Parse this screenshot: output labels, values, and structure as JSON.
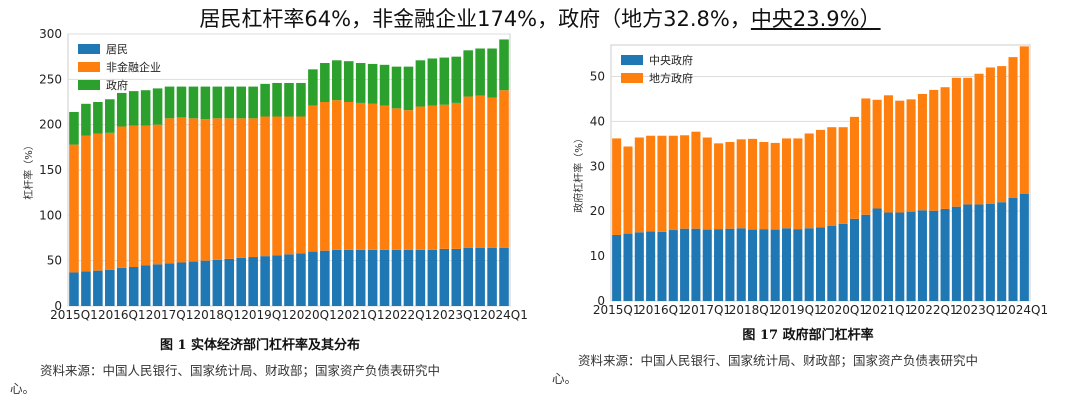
{
  "headline": {
    "part1": "居民杠杆率64%，非金融企业174%，政府（地方32.8%，",
    "part2": "中央23.9%）"
  },
  "colors": {
    "blue": "#1f77b4",
    "orange": "#ff7f0e",
    "green": "#2ca02c"
  },
  "chart_data": [
    {
      "type": "bar",
      "stacked": true,
      "title": "",
      "xlabel": "",
      "ylabel": "杠杆率（%）",
      "ylim": [
        0,
        300
      ],
      "yticks": [
        0,
        50,
        100,
        150,
        200,
        250,
        300
      ],
      "xticks": [
        "2015Q1",
        "2016Q1",
        "2017Q1",
        "2018Q1",
        "2019Q1",
        "2020Q1",
        "2021Q1",
        "2022Q1",
        "2023Q1",
        "2024Q1"
      ],
      "legend_position": "top-left",
      "grid": true,
      "categories": [
        "2015Q1",
        "2015Q2",
        "2015Q3",
        "2015Q4",
        "2016Q1",
        "2016Q2",
        "2016Q3",
        "2016Q4",
        "2017Q1",
        "2017Q2",
        "2017Q3",
        "2017Q4",
        "2018Q1",
        "2018Q2",
        "2018Q3",
        "2018Q4",
        "2019Q1",
        "2019Q2",
        "2019Q3",
        "2019Q4",
        "2020Q1",
        "2020Q2",
        "2020Q3",
        "2020Q4",
        "2021Q1",
        "2021Q2",
        "2021Q3",
        "2021Q4",
        "2022Q1",
        "2022Q2",
        "2022Q3",
        "2022Q4",
        "2023Q1",
        "2023Q2",
        "2023Q3",
        "2023Q4",
        "2024Q1"
      ],
      "series": [
        {
          "name": "居民",
          "color": "#1f77b4",
          "values": [
            37,
            38,
            39,
            40,
            42,
            43,
            45,
            46,
            47,
            48,
            49,
            50,
            51,
            52,
            53,
            54,
            55,
            56,
            57,
            58,
            60,
            61,
            62,
            62,
            62,
            62,
            62,
            62,
            62,
            62,
            62,
            63,
            63,
            64,
            64,
            64,
            64
          ]
        },
        {
          "name": "非金融企业",
          "color": "#ff7f0e",
          "values": [
            141,
            150,
            151,
            151,
            156,
            156,
            154,
            154,
            160,
            160,
            158,
            156,
            156,
            155,
            154,
            153,
            154,
            153,
            152,
            151,
            161,
            164,
            165,
            163,
            162,
            161,
            159,
            156,
            154,
            158,
            159,
            159,
            161,
            167,
            168,
            166,
            174
          ]
        },
        {
          "name": "政府",
          "color": "#2ca02c",
          "values": [
            36,
            35,
            35,
            37,
            37,
            38,
            39,
            40,
            35,
            34,
            35,
            36,
            35,
            35,
            35,
            35,
            36,
            37,
            37,
            37,
            40,
            43,
            44,
            45,
            44,
            44,
            45,
            46,
            48,
            51,
            52,
            52,
            51,
            51,
            52,
            54,
            56
          ]
        }
      ]
    },
    {
      "type": "bar",
      "stacked": true,
      "title": "",
      "xlabel": "",
      "ylabel": "政府杠杆率（%）",
      "ylim": [
        0,
        57
      ],
      "yticks": [
        0,
        10,
        20,
        30,
        40,
        50
      ],
      "xticks": [
        "2015Q1",
        "2016Q1",
        "2017Q1",
        "2018Q1",
        "2019Q1",
        "2020Q1",
        "2021Q1",
        "2022Q1",
        "2023Q1",
        "2024Q1"
      ],
      "legend_position": "top-left",
      "grid": true,
      "categories": [
        "2015Q1",
        "2015Q2",
        "2015Q3",
        "2015Q4",
        "2016Q1",
        "2016Q2",
        "2016Q3",
        "2016Q4",
        "2017Q1",
        "2017Q2",
        "2017Q3",
        "2017Q4",
        "2018Q1",
        "2018Q2",
        "2018Q3",
        "2018Q4",
        "2019Q1",
        "2019Q2",
        "2019Q3",
        "2019Q4",
        "2020Q1",
        "2020Q2",
        "2020Q3",
        "2020Q4",
        "2021Q1",
        "2021Q2",
        "2021Q3",
        "2021Q4",
        "2022Q1",
        "2022Q2",
        "2022Q3",
        "2022Q4",
        "2023Q1",
        "2023Q2",
        "2023Q3",
        "2023Q4",
        "2024Q1"
      ],
      "series": [
        {
          "name": "中央政府",
          "color": "#1f77b4",
          "values": [
            14.7,
            15.0,
            15.3,
            15.5,
            15.4,
            15.8,
            16.1,
            16.1,
            15.9,
            16.0,
            16.1,
            16.2,
            15.9,
            16.0,
            15.9,
            16.2,
            16.0,
            16.2,
            16.4,
            16.7,
            17.2,
            18.3,
            19.2,
            20.6,
            19.7,
            19.7,
            19.9,
            20.2,
            20.1,
            20.5,
            21.0,
            21.5,
            21.5,
            21.6,
            22.0,
            23.0,
            23.9
          ]
        },
        {
          "name": "地方政府",
          "color": "#ff7f0e",
          "values": [
            21.5,
            19.4,
            21.1,
            21.3,
            21.4,
            21.0,
            20.8,
            21.6,
            20.5,
            19.1,
            19.3,
            19.8,
            20.2,
            19.4,
            19.3,
            20.0,
            20.2,
            21.1,
            21.7,
            22.0,
            21.5,
            22.7,
            25.9,
            24.2,
            26.1,
            24.9,
            25.0,
            25.9,
            26.9,
            27.1,
            28.7,
            28.2,
            29.1,
            30.4,
            30.3,
            31.3,
            32.8
          ]
        }
      ]
    }
  ],
  "captions": {
    "left": "图 1  实体经济部门杠杆率及其分布",
    "right": "图 17  政府部门杠杆率"
  },
  "sources": {
    "left_line1": "资料来源：中国人民银行、国家统计局、财政部；国家资产负债表研究中",
    "left_line2": "心。",
    "right_line1": "资料来源：中国人民银行、国家统计局、财政部；国家资产负债表研究中",
    "right_line2": "心。"
  }
}
